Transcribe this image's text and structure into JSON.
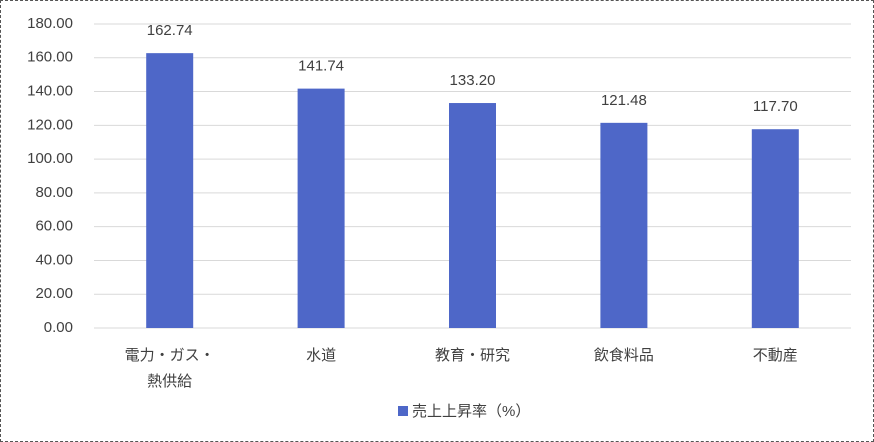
{
  "chart_data": {
    "type": "bar",
    "categories": [
      "電力・ガス・熱供給",
      "水道",
      "教育・研究",
      "飲食料品",
      "不動産"
    ],
    "series": [
      {
        "name": "売上上昇率（%）",
        "color": "#4e67c8",
        "values": [
          162.74,
          141.74,
          133.2,
          121.48,
          117.7
        ],
        "value_labels": [
          "162.74",
          "141.74",
          "133.20",
          "121.48",
          "117.70"
        ]
      }
    ],
    "ylim": [
      0,
      180
    ],
    "yticks": [
      {
        "value": 0,
        "label": "0.00"
      },
      {
        "value": 20,
        "label": "20.00"
      },
      {
        "value": 40,
        "label": "40.00"
      },
      {
        "value": 60,
        "label": "60.00"
      },
      {
        "value": 80,
        "label": "80.00"
      },
      {
        "value": 100,
        "label": "100.00"
      },
      {
        "value": 120,
        "label": "120.00"
      },
      {
        "value": 140,
        "label": "140.00"
      },
      {
        "value": 160,
        "label": "160.00"
      },
      {
        "value": 180,
        "label": "180.00"
      }
    ],
    "grid": true,
    "legend": "bottom"
  }
}
